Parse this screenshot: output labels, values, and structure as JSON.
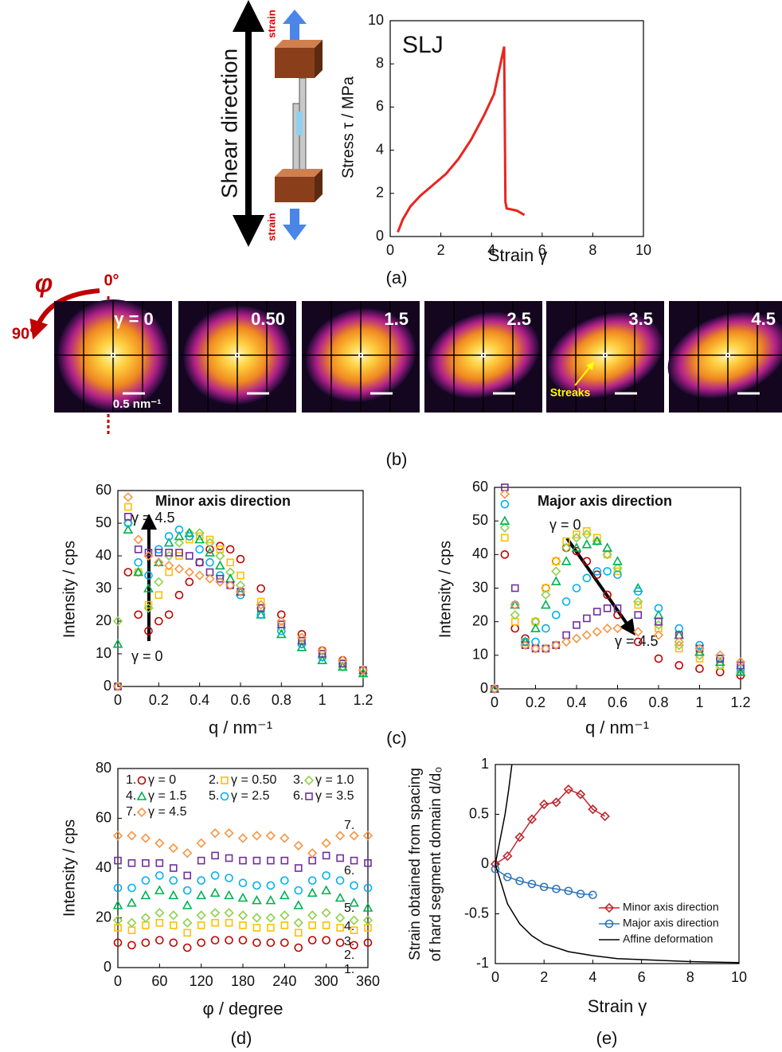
{
  "diagram": {
    "shear_direction": "Shear direction",
    "strain_top": "strain",
    "strain_bottom": "strain"
  },
  "saxs": {
    "phi": "φ",
    "zero": "0°",
    "ninety": "90°",
    "scale_label": "0.5 nm⁻¹",
    "streaks": "Streaks",
    "images": [
      "γ = 0",
      "0.50",
      "1.5",
      "2.5",
      "3.5",
      "4.5"
    ]
  },
  "panel_labels": [
    "(a)",
    "(b)",
    "(c)",
    "(d)",
    "(e)"
  ],
  "chart_data": [
    {
      "type": "line",
      "annotations": [
        "SLJ"
      ],
      "xlabel": "Strain γ",
      "ylabel": "Stress τ / MPa",
      "xlim": [
        0,
        10
      ],
      "ylim": [
        0,
        10
      ],
      "xticks": [
        0,
        2,
        4,
        6,
        8,
        10
      ],
      "yticks": [
        0,
        2,
        4,
        6,
        8,
        10
      ],
      "series": [
        {
          "color": "#e8251f",
          "x": [
            0.3,
            0.5,
            0.8,
            1.2,
            1.7,
            2.2,
            2.7,
            3.2,
            3.7,
            4.1,
            4.5,
            4.55,
            4.6,
            5.0,
            5.3
          ],
          "values": [
            0.2,
            0.8,
            1.4,
            1.9,
            2.4,
            2.9,
            3.6,
            4.5,
            5.6,
            6.6,
            8.8,
            1.6,
            1.3,
            1.2,
            1.0
          ]
        }
      ]
    },
    {
      "type": "scatter",
      "annotations": [
        "Minor axis direction",
        "γ = 4.5",
        "γ = 0"
      ],
      "xlabel": "q / nm⁻¹",
      "ylabel": "Intensity / cps",
      "xlim": [
        0,
        1.2
      ],
      "ylim": [
        0,
        60
      ],
      "xticks": [
        0,
        0.2,
        0.4,
        0.6,
        0.8,
        1,
        1.2
      ],
      "yticks": [
        0,
        10,
        20,
        30,
        40,
        50,
        60
      ],
      "x": [
        0,
        0.05,
        0.1,
        0.15,
        0.2,
        0.25,
        0.3,
        0.35,
        0.4,
        0.45,
        0.5,
        0.55,
        0.6,
        0.7,
        0.8,
        0.9,
        1.0,
        1.1,
        1.2
      ],
      "series": [
        {
          "color": "#c00000",
          "marker": "circle",
          "values": [
            0,
            35,
            22,
            17,
            20,
            22,
            28,
            32,
            38,
            42,
            43,
            42,
            39,
            30,
            22,
            16,
            11,
            8,
            5
          ]
        },
        {
          "color": "#ffc000",
          "marker": "square",
          "values": [
            0,
            55,
            35,
            25,
            28,
            35,
            40,
            45,
            46,
            45,
            42,
            38,
            34,
            26,
            19,
            14,
            10,
            7,
            5
          ]
        },
        {
          "color": "#92d050",
          "marker": "diamond",
          "values": [
            20,
            50,
            35,
            24,
            32,
            40,
            44,
            47,
            47,
            44,
            40,
            35,
            31,
            24,
            18,
            13,
            9,
            6,
            4
          ]
        },
        {
          "color": "#00b050",
          "marker": "triangle",
          "values": [
            13,
            48,
            35,
            30,
            38,
            44,
            46,
            47,
            45,
            41,
            37,
            33,
            29,
            22,
            16,
            12,
            8,
            6,
            4
          ]
        },
        {
          "color": "#00b0f0",
          "marker": "circle",
          "values": [
            0,
            50,
            38,
            34,
            42,
            46,
            48,
            46,
            42,
            38,
            34,
            31,
            28,
            22,
            17,
            13,
            9,
            7,
            5
          ]
        },
        {
          "color": "#7030a0",
          "marker": "square",
          "values": [
            0,
            52,
            42,
            41,
            41,
            41,
            41,
            40,
            38,
            35,
            33,
            31,
            29,
            24,
            19,
            14,
            10,
            7,
            5
          ]
        },
        {
          "color": "#f79646",
          "marker": "diamond",
          "values": [
            0,
            58,
            45,
            40,
            38,
            37,
            36,
            35,
            34,
            33,
            32,
            31,
            29,
            25,
            20,
            15,
            11,
            8,
            5
          ]
        }
      ]
    },
    {
      "type": "scatter",
      "annotations": [
        "Major axis direction",
        "γ =  0",
        "γ =  4.5"
      ],
      "xlabel": "q / nm⁻¹",
      "ylabel": "Intensity / cps",
      "xlim": [
        0,
        1.2
      ],
      "ylim": [
        0,
        60
      ],
      "xticks": [
        0,
        0.2,
        0.4,
        0.6,
        0.8,
        1,
        1.2
      ],
      "yticks": [
        0,
        10,
        20,
        30,
        40,
        50,
        60
      ],
      "x": [
        0,
        0.05,
        0.1,
        0.15,
        0.2,
        0.25,
        0.3,
        0.35,
        0.4,
        0.45,
        0.5,
        0.55,
        0.6,
        0.7,
        0.8,
        0.9,
        1.0,
        1.1,
        1.2
      ],
      "series": [
        {
          "color": "#c00000",
          "marker": "circle",
          "values": [
            0,
            40,
            18,
            15,
            20,
            30,
            38,
            42,
            41,
            38,
            34,
            28,
            22,
            14,
            9,
            7,
            6,
            5,
            4
          ]
        },
        {
          "color": "#ffc000",
          "marker": "square",
          "values": [
            0,
            45,
            20,
            14,
            20,
            30,
            38,
            44,
            46,
            47,
            45,
            40,
            35,
            25,
            18,
            12,
            9,
            7,
            6
          ]
        },
        {
          "color": "#92d050",
          "marker": "diamond",
          "values": [
            0,
            48,
            22,
            14,
            20,
            28,
            35,
            42,
            45,
            46,
            44,
            40,
            36,
            26,
            19,
            13,
            10,
            7,
            5
          ]
        },
        {
          "color": "#00b050",
          "marker": "triangle",
          "values": [
            0,
            50,
            25,
            14,
            18,
            25,
            32,
            38,
            42,
            43,
            44,
            42,
            38,
            30,
            22,
            16,
            11,
            8,
            5
          ]
        },
        {
          "color": "#00b0f0",
          "marker": "circle",
          "values": [
            0,
            55,
            25,
            14,
            14,
            18,
            22,
            26,
            30,
            33,
            35,
            35,
            34,
            29,
            24,
            18,
            13,
            9,
            6
          ]
        },
        {
          "color": "#7030a0",
          "marker": "square",
          "values": [
            0,
            60,
            30,
            13,
            12,
            12,
            13,
            16,
            19,
            21,
            23,
            24,
            24,
            22,
            20,
            16,
            12,
            9,
            7
          ]
        },
        {
          "color": "#f79646",
          "marker": "diamond",
          "values": [
            0,
            58,
            25,
            13,
            12,
            12,
            13,
            14,
            15,
            16,
            17,
            18,
            18,
            17,
            16,
            14,
            12,
            10,
            8
          ]
        }
      ]
    },
    {
      "type": "scatter",
      "xlabel": "φ / degree",
      "ylabel": "Intensity / cps",
      "xlim": [
        0,
        360
      ],
      "ylim": [
        0,
        80
      ],
      "xticks": [
        0,
        60,
        120,
        180,
        240,
        300,
        360
      ],
      "yticks": [
        0,
        20,
        40,
        60,
        80
      ],
      "x": [
        0,
        20,
        40,
        60,
        80,
        100,
        120,
        140,
        160,
        180,
        200,
        220,
        240,
        260,
        280,
        300,
        320,
        340,
        360
      ],
      "series": [
        {
          "number": "1.",
          "name": "γ = 0",
          "color": "#c00000",
          "marker": "circle",
          "values": [
            10,
            9,
            10,
            11,
            10,
            8,
            10,
            11,
            11,
            11,
            10,
            10,
            10,
            8,
            11,
            11,
            10,
            9,
            10
          ]
        },
        {
          "number": "2.",
          "name": "γ = 0.50",
          "color": "#ffc000",
          "marker": "square",
          "values": [
            16,
            15,
            17,
            18,
            17,
            14,
            17,
            18,
            18,
            17,
            16,
            16,
            17,
            14,
            17,
            17,
            16,
            15,
            16
          ]
        },
        {
          "number": "3.",
          "name": "γ = 1.0",
          "color": "#92d050",
          "marker": "diamond",
          "values": [
            19,
            18,
            20,
            22,
            21,
            18,
            21,
            22,
            22,
            21,
            20,
            20,
            21,
            18,
            21,
            22,
            20,
            19,
            19
          ]
        },
        {
          "number": "4.",
          "name": "γ = 1.5",
          "color": "#00b050",
          "marker": "triangle",
          "values": [
            25,
            26,
            29,
            31,
            29,
            25,
            29,
            30,
            29,
            28,
            27,
            27,
            29,
            25,
            30,
            31,
            28,
            26,
            24
          ]
        },
        {
          "number": "5.",
          "name": "γ = 2.5",
          "color": "#00b0f0",
          "marker": "circle",
          "values": [
            32,
            32,
            35,
            37,
            35,
            31,
            35,
            37,
            36,
            34,
            33,
            33,
            35,
            31,
            35,
            37,
            35,
            33,
            32
          ]
        },
        {
          "number": "6.",
          "name": "γ = 3.5",
          "color": "#7030a0",
          "marker": "square",
          "values": [
            43,
            42,
            42,
            42,
            40,
            37,
            43,
            45,
            44,
            43,
            43,
            43,
            43,
            40,
            43,
            45,
            44,
            43,
            42
          ]
        },
        {
          "number": "7.",
          "name": "γ = 4.5",
          "color": "#f79646",
          "marker": "diamond",
          "values": [
            53,
            53,
            52,
            50,
            48,
            46,
            50,
            54,
            54,
            52,
            53,
            53,
            52,
            49,
            46,
            50,
            53,
            53,
            53
          ]
        }
      ]
    },
    {
      "type": "line",
      "xlabel": "Strain γ",
      "ylabel": [
        "Strain obtained from spacing",
        "of hard segment domain d/d₀"
      ],
      "xlim": [
        0,
        10
      ],
      "ylim": [
        -1,
        1
      ],
      "xticks": [
        0,
        2,
        4,
        6,
        8,
        10
      ],
      "yticks": [
        -1,
        -0.5,
        0,
        0.5,
        1
      ],
      "legend": "lower right",
      "series": [
        {
          "name": "Minor axis direction",
          "color": "#c0282e",
          "marker": "diamond",
          "x": [
            0,
            0.5,
            1,
            1.5,
            2,
            2.5,
            3,
            3.5,
            4,
            4.5
          ],
          "values": [
            0,
            0.08,
            0.27,
            0.45,
            0.6,
            0.62,
            0.75,
            0.7,
            0.55,
            0.48
          ]
        },
        {
          "name": "Major axis direction",
          "color": "#2e75b6",
          "marker": "circle",
          "x": [
            0,
            0.5,
            1,
            1.5,
            2,
            2.5,
            3,
            3.5,
            4
          ],
          "values": [
            -0.05,
            -0.13,
            -0.17,
            -0.2,
            -0.23,
            -0.25,
            -0.27,
            -0.3,
            -0.31
          ]
        },
        {
          "name": "Affine deformation",
          "color": "#000000",
          "x": [
            0,
            0.2,
            0.4,
            0.55,
            0.68,
            0.68,
            0,
            0.5,
            1,
            1.5,
            2,
            3,
            4,
            5,
            6,
            8,
            10
          ],
          "values": [
            0,
            0.25,
            0.5,
            0.75,
            1,
            null,
            0,
            -0.4,
            -0.6,
            -0.72,
            -0.8,
            -0.88,
            -0.92,
            -0.95,
            -0.96,
            -0.98,
            -0.99
          ]
        }
      ]
    }
  ]
}
